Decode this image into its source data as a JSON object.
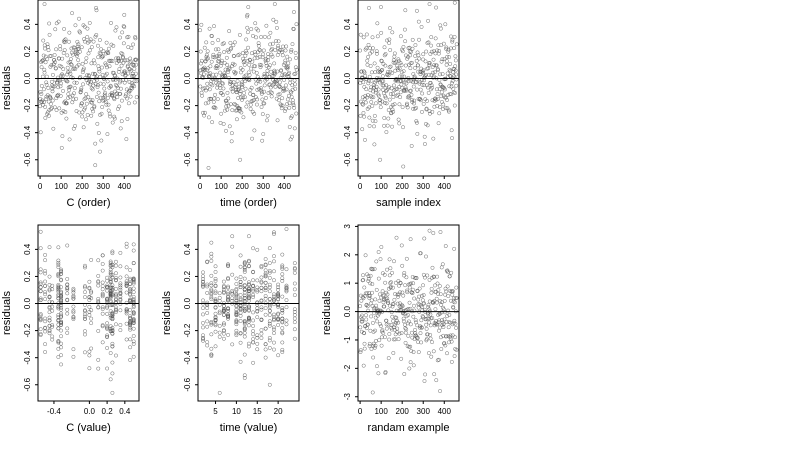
{
  "chart_data": [
    {
      "type": "scatter",
      "xlabel": "C (order)",
      "ylabel": "residuals",
      "xlim": [
        -10,
        470
      ],
      "ylim": [
        -0.72,
        0.58
      ],
      "xticks": [
        0,
        100,
        200,
        300,
        400
      ],
      "yticks": [
        -0.6,
        -0.4,
        -0.2,
        0.0,
        0.2,
        0.4
      ],
      "hline": 0,
      "n": 460,
      "x_mode": "order",
      "y_sd": 0.18,
      "seed": 11,
      "y_extremes": [
        [
          21,
          0.55
        ],
        [
          140,
          -0.45
        ],
        [
          262,
          -0.64
        ],
        [
          285,
          -0.54
        ],
        [
          400,
          0.47
        ]
      ]
    },
    {
      "type": "scatter",
      "xlabel": "time (order)",
      "ylabel": "residuals",
      "xlim": [
        -10,
        470
      ],
      "ylim": [
        -0.72,
        0.58
      ],
      "xticks": [
        0,
        100,
        200,
        300,
        400
      ],
      "yticks": [
        -0.6,
        -0.4,
        -0.2,
        0.0,
        0.2,
        0.4
      ],
      "hline": 0,
      "n": 460,
      "x_mode": "order",
      "y_sd": 0.18,
      "seed": 23,
      "y_extremes": [
        [
          40,
          -0.66
        ],
        [
          190,
          -0.6
        ],
        [
          225,
          0.47
        ],
        [
          355,
          0.55
        ],
        [
          430,
          -0.45
        ]
      ]
    },
    {
      "type": "scatter",
      "xlabel": "sample index",
      "ylabel": "residuals",
      "xlim": [
        -10,
        470
      ],
      "ylim": [
        -0.72,
        0.58
      ],
      "xticks": [
        0,
        100,
        200,
        300,
        400
      ],
      "yticks": [
        -0.6,
        -0.4,
        -0.2,
        0.0,
        0.2,
        0.4
      ],
      "hline": 0,
      "n": 460,
      "x_mode": "order",
      "y_sd": 0.18,
      "seed": 37,
      "y_extremes": [
        [
          95,
          -0.6
        ],
        [
          205,
          -0.65
        ],
        [
          330,
          0.55
        ],
        [
          450,
          0.56
        ],
        [
          270,
          0.5
        ]
      ]
    },
    {
      "type": "scatter",
      "xlabel": "C (value)",
      "ylabel": "residuals",
      "xlim": [
        -0.58,
        0.56
      ],
      "ylim": [
        -0.72,
        0.58
      ],
      "xticks": [
        -0.4,
        0.0,
        0.2,
        0.4
      ],
      "xtick_labels": [
        "-0.4",
        "0.0",
        "0.2",
        "0.4"
      ],
      "yticks": [
        -0.6,
        -0.4,
        -0.2,
        0.0,
        0.2,
        0.4
      ],
      "hline": 0,
      "n": 460,
      "x_mode": "discrete",
      "x_levels": [
        -0.55,
        -0.5,
        -0.45,
        -0.42,
        -0.35,
        -0.32,
        -0.25,
        -0.18,
        -0.05,
        0.0,
        0.02,
        0.1,
        0.15,
        0.2,
        0.24,
        0.26,
        0.3,
        0.35,
        0.42,
        0.46,
        0.5
      ],
      "x_weights": [
        2,
        2,
        3,
        2,
        4,
        5,
        2,
        2,
        2,
        2,
        1,
        2,
        2,
        3,
        6,
        6,
        3,
        3,
        3,
        4,
        5
      ],
      "y_sd": 0.18,
      "seed": 53,
      "y_extremes": [
        [
          -0.55,
          0.53
        ],
        [
          0.26,
          -0.66
        ],
        [
          0.24,
          -0.56
        ],
        [
          0.2,
          -0.48
        ],
        [
          -0.32,
          -0.45
        ]
      ]
    },
    {
      "type": "scatter",
      "xlabel": "time (value)",
      "ylabel": "residuals",
      "xlim": [
        0.8,
        25
      ],
      "ylim": [
        -0.72,
        0.58
      ],
      "xticks": [
        5,
        10,
        15,
        20
      ],
      "yticks": [
        -0.6,
        -0.4,
        -0.2,
        0.0,
        0.2,
        0.4
      ],
      "hline": 0,
      "n": 460,
      "x_mode": "discrete",
      "x_levels": [
        2,
        3,
        4,
        5,
        6,
        7,
        8,
        9,
        10,
        11,
        12,
        13,
        14,
        15,
        16,
        17,
        18,
        19,
        20,
        21,
        22,
        24
      ],
      "x_weights": [
        2,
        2,
        3,
        3,
        3,
        4,
        3,
        2,
        3,
        4,
        6,
        4,
        3,
        3,
        3,
        3,
        3,
        3,
        3,
        3,
        2,
        4
      ],
      "y_sd": 0.18,
      "seed": 71,
      "y_extremes": [
        [
          6,
          -0.66
        ],
        [
          12,
          -0.55
        ],
        [
          22,
          0.55
        ],
        [
          18,
          -0.6
        ],
        [
          9,
          0.42
        ]
      ]
    },
    {
      "type": "scatter",
      "xlabel": "randam example",
      "ylabel": "residuals",
      "xlim": [
        -10,
        470
      ],
      "ylim": [
        -3.15,
        3.05
      ],
      "xticks": [
        0,
        100,
        200,
        300,
        400
      ],
      "yticks": [
        -3,
        -2,
        -1,
        0,
        1,
        2,
        3
      ],
      "hline": 0,
      "n": 460,
      "x_mode": "order",
      "y_sd": 0.95,
      "seed": 97,
      "y_extremes": [
        [
          60,
          -2.85
        ],
        [
          210,
          -2.2
        ],
        [
          330,
          2.85
        ],
        [
          380,
          -2.8
        ],
        [
          240,
          2.55
        ]
      ]
    }
  ]
}
